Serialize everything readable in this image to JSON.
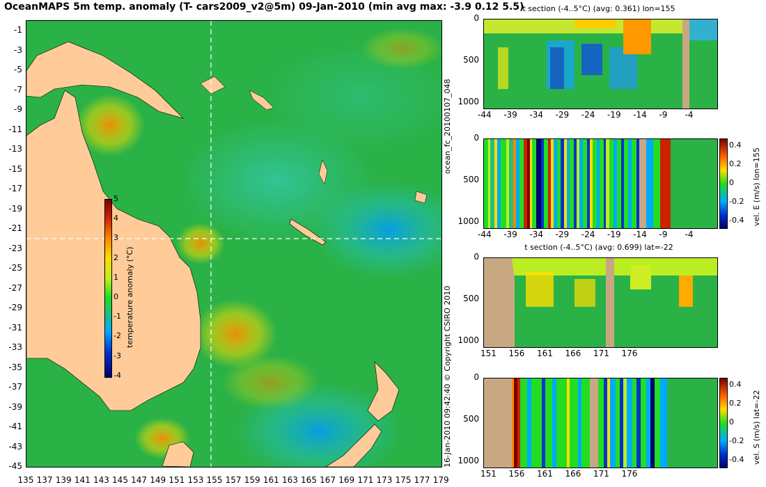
{
  "main": {
    "title": "OceanMAPS 5m temp. anomaly (T- cars2009_v2@5m) 09-Jan-2010 (min avg max: -3.9 0.12 5.5)",
    "lat_ticks": [
      "-1",
      "-3",
      "-5",
      "-7",
      "-9",
      "-11",
      "-13",
      "-15",
      "-17",
      "-19",
      "-21",
      "-23",
      "-25",
      "-27",
      "-29",
      "-31",
      "-33",
      "-35",
      "-37",
      "-39",
      "-41",
      "-43",
      "-45"
    ],
    "lon_ticks": [
      "135",
      "137",
      "139",
      "141",
      "143",
      "145",
      "147",
      "149",
      "151",
      "153",
      "155",
      "157",
      "159",
      "161",
      "163",
      "165",
      "167",
      "169",
      "171",
      "173",
      "175",
      "177",
      "179"
    ],
    "colorbar": {
      "label": "temperature anomaly (°C)",
      "ticks": [
        "5",
        "4",
        "3",
        "2",
        "1",
        "0",
        "-1",
        "-2",
        "-3",
        "-4"
      ]
    },
    "section_lines": {
      "longitude": 155,
      "latitude": -22
    },
    "land_color": "#ffcc99"
  },
  "panels": {
    "p1": {
      "title": "t section (-4..5°C) (avg: 0.361) lon=155",
      "yticks": [
        "0",
        "500",
        "1000"
      ],
      "xticks": [
        "-44",
        "-39",
        "-34",
        "-29",
        "-24",
        "-19",
        "-14",
        "-9",
        "-4"
      ]
    },
    "p2": {
      "title": "",
      "yticks": [
        "0",
        "500",
        "1000"
      ],
      "xticks": [
        "-44",
        "-39",
        "-34",
        "-29",
        "-24",
        "-19",
        "-14",
        "-9",
        "-4"
      ],
      "colorbar_label": "vel. E (m/s) lon=155",
      "colorbar_ticks": [
        "0.4",
        "0.2",
        "0",
        "-0.2",
        "-0.4"
      ]
    },
    "p3": {
      "title": "t section (-4..5°C) (avg: 0.699) lat=-22",
      "yticks": [
        "0",
        "500",
        "1000"
      ],
      "xticks": [
        "151",
        "156",
        "161",
        "166",
        "171",
        "176"
      ]
    },
    "p4": {
      "title": "",
      "yticks": [
        "0",
        "500",
        "1000"
      ],
      "xticks": [
        "151",
        "156",
        "161",
        "166",
        "171",
        "176"
      ],
      "colorbar_label": "vel. S (m/s) lat=-22",
      "colorbar_ticks": [
        "0.4",
        "0.2",
        "0",
        "-0.2",
        "-0.4"
      ]
    }
  },
  "side_labels": {
    "model_run": "ocean_fc_20100107_048",
    "copyright": "16-Jan-2010 09:42:40 © Copyright CSIRO 2010"
  },
  "colors": {
    "anomaly_scale": [
      "#00006e",
      "#0033cc",
      "#00aaff",
      "#22c07a",
      "#22dd22",
      "#bbee22",
      "#ffdd00",
      "#ff8800",
      "#cc2200",
      "#7a0000"
    ],
    "section_land": "#c8a882"
  }
}
